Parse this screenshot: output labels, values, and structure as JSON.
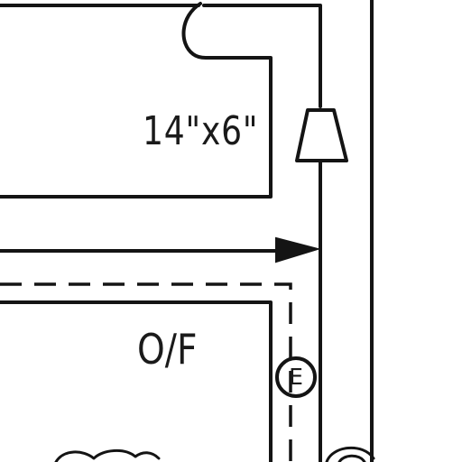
{
  "labels": {
    "duct_size": "14\"x6\"",
    "duct_code": "O/F",
    "marker_letter": "E"
  },
  "colors": {
    "line": "#141414",
    "background": "#ffffff"
  },
  "symbols": [
    "duct-outline-upper",
    "duct-outline-lower",
    "flow-arrow",
    "damper-symbol",
    "dashed-duct-line",
    "equipment-marker"
  ]
}
